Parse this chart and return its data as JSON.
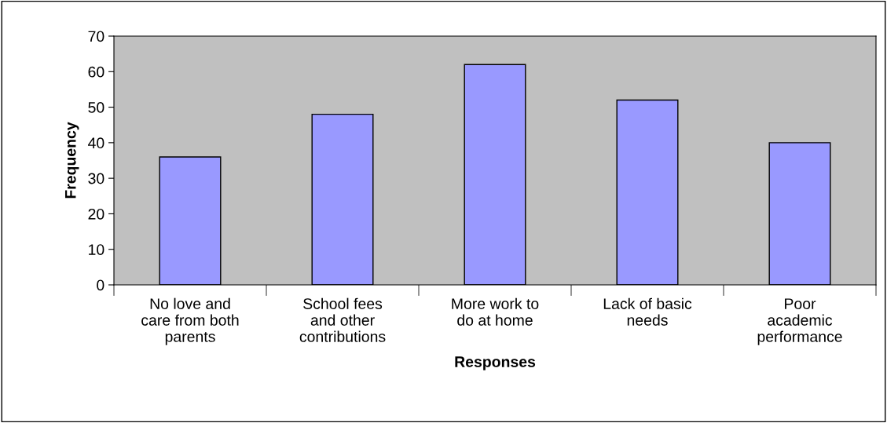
{
  "chart_data": {
    "type": "bar",
    "xlabel": "Responses",
    "ylabel": "Frequency",
    "categories": [
      "No love and\ncare from both\nparents",
      "School fees\nand other\ncontributions",
      "More work to\ndo at home",
      "Lack of basic\nneeds",
      "Poor\nacademic\nperformance"
    ],
    "values": [
      36,
      48,
      62,
      52,
      40
    ],
    "color": "#9999ff",
    "ylim": [
      0,
      70
    ],
    "yticks": [
      0,
      10,
      20,
      30,
      40,
      50,
      60,
      70
    ],
    "grid": false,
    "legend": false
  }
}
